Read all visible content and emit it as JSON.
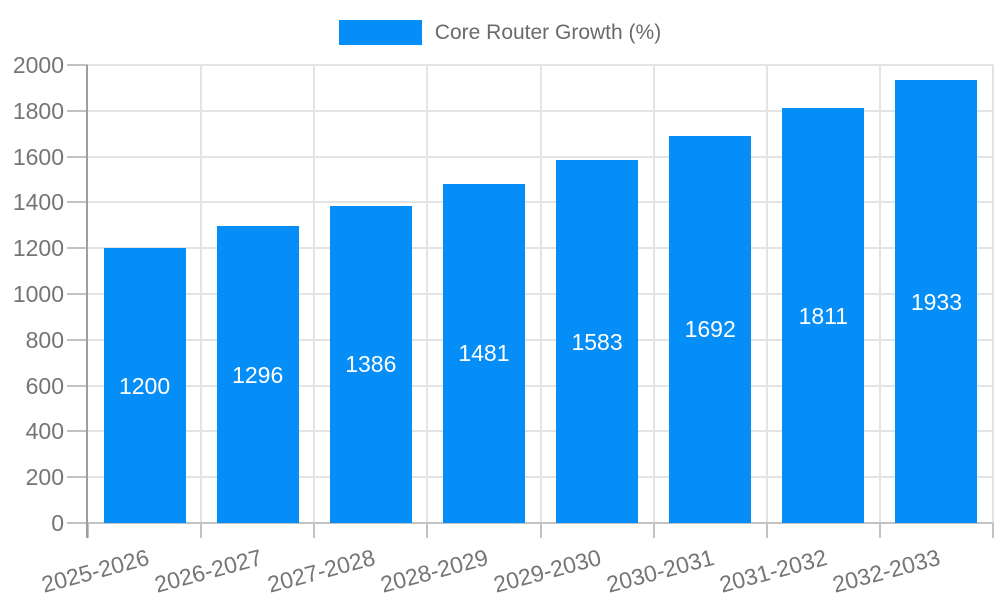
{
  "legend": {
    "items": [
      {
        "label": "Core Router Growth (%)"
      }
    ]
  },
  "chart_data": {
    "type": "bar",
    "title": "Core Router Growth (%)",
    "categories": [
      "2025-2026",
      "2026-2027",
      "2027-2028",
      "2028-2029",
      "2029-2030",
      "2030-2031",
      "2031-2032",
      "2032-2033"
    ],
    "values": [
      1200,
      1296,
      1386,
      1481,
      1583,
      1692,
      1811,
      1933
    ],
    "xlabel": "",
    "ylabel": "",
    "ylim": [
      0,
      2000
    ],
    "ytick_step": 200,
    "yticks": [
      0,
      200,
      400,
      600,
      800,
      1000,
      1200,
      1400,
      1600,
      1800,
      2000
    ],
    "grid": true,
    "legend_position": "top-center",
    "value_labels_inside_bars": true
  },
  "colors": {
    "bar": "#058df8",
    "gridline": "#e3e3e3",
    "y_axis_line": "#9e9e9e",
    "x_axis_line": "#c2c2c2",
    "tick_mark": "#c2c2c2",
    "tick_text": "#757575",
    "legend_text": "#6a6a6a",
    "value_text": "#ffffff",
    "background": "#ffffff"
  }
}
